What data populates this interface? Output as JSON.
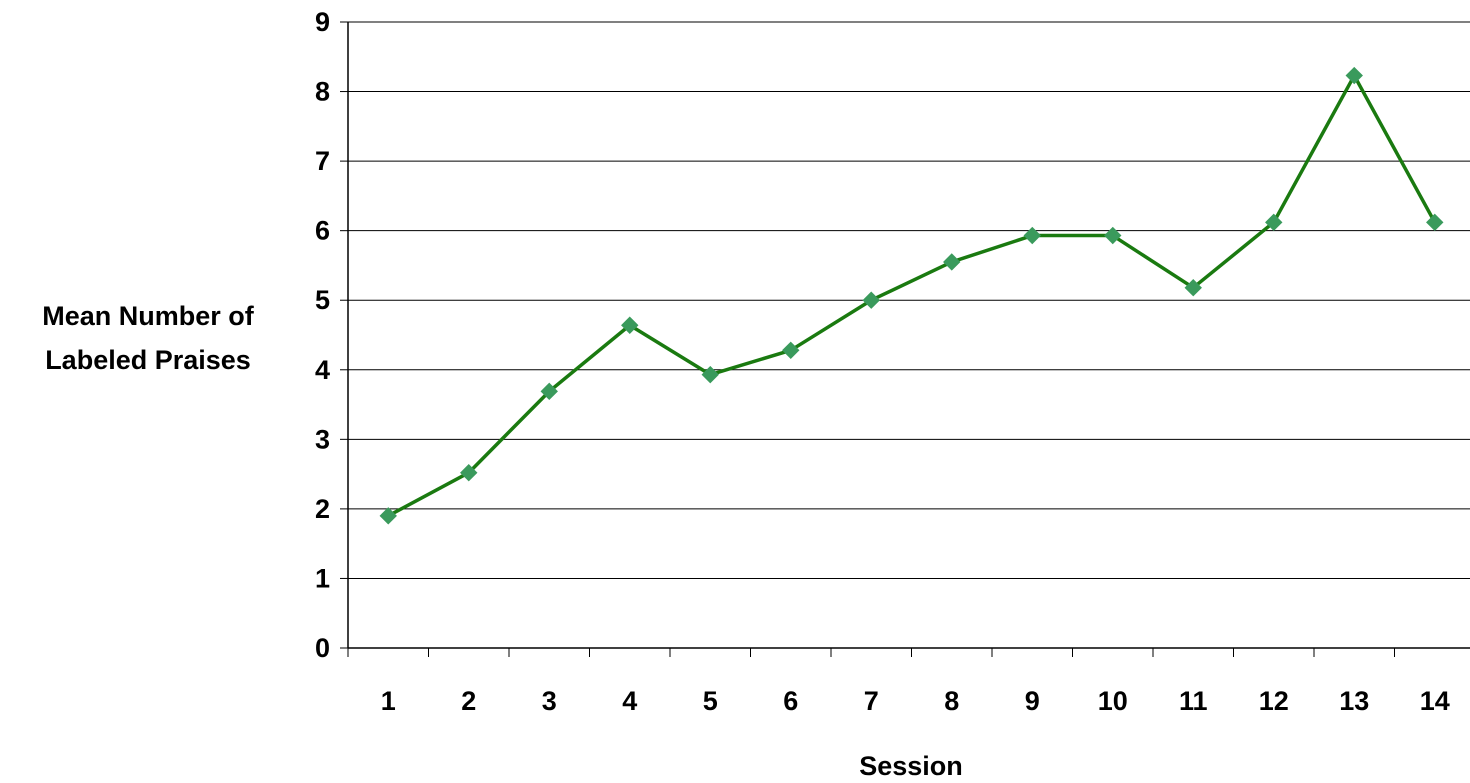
{
  "chart_data": {
    "type": "line",
    "title": "",
    "xlabel": "Session",
    "ylabel_lines": [
      "Mean Number of",
      "Labeled Praises"
    ],
    "categories": [
      "1",
      "2",
      "3",
      "4",
      "5",
      "6",
      "7",
      "8",
      "9",
      "10",
      "11",
      "12",
      "13",
      "14"
    ],
    "series": [
      {
        "values": [
          1.9,
          2.52,
          3.69,
          4.64,
          3.93,
          4.28,
          5.0,
          5.55,
          5.93,
          5.93,
          5.18,
          6.12,
          8.23,
          6.12
        ]
      }
    ],
    "ylim": [
      0,
      9
    ],
    "yticks": [
      "0",
      "1",
      "2",
      "3",
      "4",
      "5",
      "6",
      "7",
      "8",
      "9"
    ],
    "grid": "horizontal",
    "legend": "none",
    "colors": {
      "line": "#1a7a10",
      "marker": "#3a9a5c",
      "grid": "#000000"
    }
  }
}
